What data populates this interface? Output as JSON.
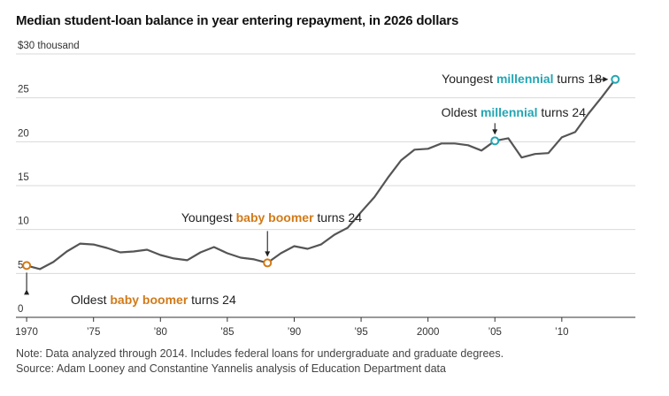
{
  "title": "Median student-loan balance in year entering repayment, in 2026 dollars",
  "notes": [
    "Note: Data analyzed through 2014. Includes federal loans for undergraduate and graduate degrees.",
    "Source: Adam Looney and Constantine Yannelis analysis of Education Department data"
  ],
  "colors": {
    "line": "#555555",
    "boomer": "#d27a18",
    "millennial": "#23a6b4",
    "grid": "#d9d9d9"
  },
  "chart_data": {
    "type": "line",
    "title": "Median student-loan balance in year entering repayment, in 2026 dollars",
    "xlabel": "",
    "ylabel": "$30 thousand",
    "xlim": [
      1969.2,
      2015.5
    ],
    "ylim": [
      0,
      30
    ],
    "grid": true,
    "yticks": [
      {
        "value": 30,
        "label": "$30 thousand"
      },
      {
        "value": 25,
        "label": "25"
      },
      {
        "value": 20,
        "label": "20"
      },
      {
        "value": 15,
        "label": "15"
      },
      {
        "value": 10,
        "label": "10"
      },
      {
        "value": 5,
        "label": "5"
      },
      {
        "value": 0,
        "label": "0"
      }
    ],
    "xticks": [
      {
        "value": 1970,
        "label": "1970"
      },
      {
        "value": 1975,
        "label": "’75"
      },
      {
        "value": 1980,
        "label": "’80"
      },
      {
        "value": 1985,
        "label": "’85"
      },
      {
        "value": 1990,
        "label": "’90"
      },
      {
        "value": 1995,
        "label": "’95"
      },
      {
        "value": 2000,
        "label": "2000"
      },
      {
        "value": 2005,
        "label": "’05"
      },
      {
        "value": 2010,
        "label": "’10"
      }
    ],
    "series": [
      {
        "x": [
          1970,
          1971,
          1972,
          1973,
          1974,
          1975,
          1976,
          1977,
          1978,
          1979,
          1980,
          1981,
          1982,
          1983,
          1984,
          1985,
          1986,
          1987,
          1988,
          1989,
          1990,
          1991,
          1992,
          1993,
          1994,
          1995,
          1996,
          1997,
          1998,
          1999,
          2000,
          2001,
          2002,
          2003,
          2004,
          2005,
          2006,
          2007,
          2008,
          2009,
          2010,
          2011,
          2012,
          2013,
          2014
        ],
        "y": [
          5.9,
          5.5,
          6.3,
          7.5,
          8.4,
          8.3,
          7.9,
          7.4,
          7.5,
          7.7,
          7.1,
          6.7,
          6.5,
          7.4,
          8.0,
          7.3,
          6.8,
          6.6,
          6.2,
          7.3,
          8.1,
          7.8,
          8.3,
          9.4,
          10.2,
          12.0,
          13.7,
          15.9,
          17.9,
          19.1,
          19.2,
          19.8,
          19.8,
          19.6,
          19.0,
          20.1,
          20.4,
          18.2,
          18.6,
          18.7,
          20.5,
          21.1,
          23.2,
          25.1,
          27.1
        ]
      }
    ],
    "annotations": [
      {
        "x": 1970,
        "y": 5.9,
        "group": "boomer",
        "before": "Oldest ",
        "highlight": "baby boomer",
        "after": " turns 24"
      },
      {
        "x": 1988,
        "y": 6.2,
        "group": "boomer",
        "before": "Youngest ",
        "highlight": "baby boomer",
        "after": " turns 24"
      },
      {
        "x": 2005,
        "y": 20.1,
        "group": "millennial",
        "before": "Oldest ",
        "highlight": "millennial",
        "after": " turns 24"
      },
      {
        "x": 2014,
        "y": 27.1,
        "group": "millennial",
        "before": "Youngest ",
        "highlight": "millennial",
        "after": " turns 18"
      }
    ]
  }
}
